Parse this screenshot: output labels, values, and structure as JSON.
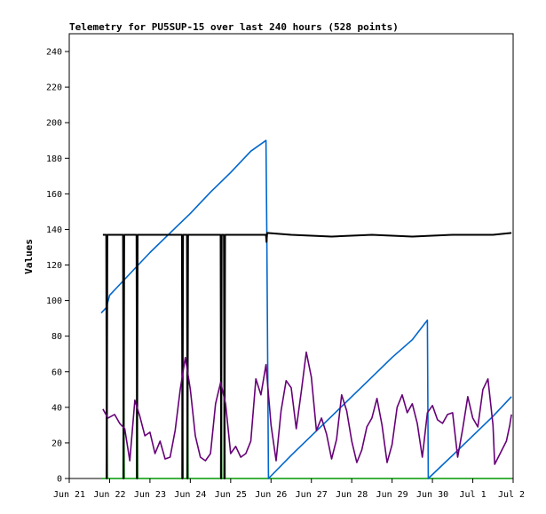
{
  "chart_data": {
    "type": "line",
    "title": "Telemetry for PU5SUP-15 over last 240 hours (528 points)",
    "ylabel": "Values",
    "xlabel": "",
    "ylim": [
      0,
      250
    ],
    "xlim": [
      "2023-06-21",
      "2023-07-02"
    ],
    "y_ticks": [
      0,
      20,
      40,
      60,
      80,
      100,
      120,
      140,
      160,
      180,
      200,
      220,
      240
    ],
    "x_ticks": [
      {
        "x": "2023-06-21",
        "label": "Jun 21"
      },
      {
        "x": "2023-06-22",
        "label": "Jun 22"
      },
      {
        "x": "2023-06-23",
        "label": "Jun 23"
      },
      {
        "x": "2023-06-24",
        "label": "Jun 24"
      },
      {
        "x": "2023-06-25",
        "label": "Jun 25"
      },
      {
        "x": "2023-06-26",
        "label": "Jun 26"
      },
      {
        "x": "2023-06-27",
        "label": "Jun 27"
      },
      {
        "x": "2023-06-28",
        "label": "Jun 28"
      },
      {
        "x": "2023-06-29",
        "label": "Jun 29"
      },
      {
        "x": "2023-06-30",
        "label": "Jun 30"
      },
      {
        "x": "2023-07-01",
        "label": "Jul 1"
      },
      {
        "x": "2023-07-02",
        "label": "Jul 2"
      }
    ],
    "grid": false,
    "series": [
      {
        "color": "#0066cc",
        "points": [
          [
            "2023-06-21 19:00",
            93
          ],
          [
            "2023-06-21 22:00",
            96
          ],
          [
            "2023-06-22 00:00",
            103
          ],
          [
            "2023-06-22 12:00",
            115
          ],
          [
            "2023-06-23 00:00",
            127
          ],
          [
            "2023-06-23 12:00",
            138
          ],
          [
            "2023-06-24 00:00",
            149
          ],
          [
            "2023-06-24 12:00",
            161
          ],
          [
            "2023-06-25 00:00",
            172
          ],
          [
            "2023-06-25 12:00",
            184
          ],
          [
            "2023-06-25 21:00",
            190
          ],
          [
            "2023-06-25 21:30",
            140
          ],
          [
            "2023-06-25 22:30",
            0
          ],
          [
            "2023-06-26 12:00",
            13
          ],
          [
            "2023-06-27 00:00",
            24
          ],
          [
            "2023-06-27 12:00",
            35
          ],
          [
            "2023-06-28 00:00",
            46
          ],
          [
            "2023-06-28 12:00",
            57
          ],
          [
            "2023-06-29 00:00",
            68
          ],
          [
            "2023-06-29 12:00",
            78
          ],
          [
            "2023-06-29 21:00",
            89
          ],
          [
            "2023-06-29 21:30",
            0
          ],
          [
            "2023-06-30 12:00",
            13
          ],
          [
            "2023-07-01 00:00",
            24
          ],
          [
            "2023-07-01 12:00",
            35
          ],
          [
            "2023-07-01 23:00",
            46
          ]
        ]
      },
      {
        "color": "#000000",
        "points": [
          [
            "2023-06-21 20:00",
            137
          ],
          [
            "2023-06-21 22:00",
            137
          ],
          [
            "2023-06-21 22:20",
            0
          ],
          [
            "2023-06-21 22:40",
            137
          ],
          [
            "2023-06-22 08:00",
            137
          ],
          [
            "2023-06-22 08:20",
            0
          ],
          [
            "2023-06-22 08:40",
            137
          ],
          [
            "2023-06-22 16:00",
            137
          ],
          [
            "2023-06-22 16:20",
            0
          ],
          [
            "2023-06-22 16:40",
            137
          ],
          [
            "2023-06-23 19:00",
            137
          ],
          [
            "2023-06-23 19:20",
            0
          ],
          [
            "2023-06-23 19:40",
            137
          ],
          [
            "2023-06-23 22:00",
            137
          ],
          [
            "2023-06-23 22:20",
            0
          ],
          [
            "2023-06-23 22:40",
            137
          ],
          [
            "2023-06-24 18:00",
            137
          ],
          [
            "2023-06-24 18:20",
            0
          ],
          [
            "2023-06-24 18:40",
            137
          ],
          [
            "2023-06-24 20:00",
            137
          ],
          [
            "2023-06-24 20:20",
            0
          ],
          [
            "2023-06-24 20:40",
            137
          ],
          [
            "2023-06-25 21:00",
            137
          ],
          [
            "2023-06-25 21:20",
            133
          ],
          [
            "2023-06-25 21:40",
            138
          ],
          [
            "2023-06-26 12:00",
            137
          ],
          [
            "2023-06-27 12:00",
            136
          ],
          [
            "2023-06-28 12:00",
            137
          ],
          [
            "2023-06-29 12:00",
            136
          ],
          [
            "2023-06-30 12:00",
            137
          ],
          [
            "2023-07-01 12:00",
            137
          ],
          [
            "2023-07-01 23:00",
            138
          ]
        ]
      },
      {
        "color": "#660077",
        "points": [
          [
            "2023-06-21 20:00",
            39
          ],
          [
            "2023-06-21 23:00",
            34
          ],
          [
            "2023-06-22 03:00",
            36
          ],
          [
            "2023-06-22 06:00",
            31
          ],
          [
            "2023-06-22 09:00",
            28
          ],
          [
            "2023-06-22 12:00",
            10
          ],
          [
            "2023-06-22 15:00",
            44
          ],
          [
            "2023-06-22 18:00",
            35
          ],
          [
            "2023-06-22 21:00",
            24
          ],
          [
            "2023-06-23 00:00",
            26
          ],
          [
            "2023-06-23 03:00",
            14
          ],
          [
            "2023-06-23 06:00",
            21
          ],
          [
            "2023-06-23 09:00",
            11
          ],
          [
            "2023-06-23 12:00",
            12
          ],
          [
            "2023-06-23 15:00",
            27
          ],
          [
            "2023-06-23 18:00",
            50
          ],
          [
            "2023-06-23 21:00",
            68
          ],
          [
            "2023-06-24 00:00",
            50
          ],
          [
            "2023-06-24 03:00",
            24
          ],
          [
            "2023-06-24 06:00",
            12
          ],
          [
            "2023-06-24 09:00",
            10
          ],
          [
            "2023-06-24 12:00",
            14
          ],
          [
            "2023-06-24 15:00",
            42
          ],
          [
            "2023-06-24 18:00",
            54
          ],
          [
            "2023-06-24 21:00",
            42
          ],
          [
            "2023-06-25 00:00",
            14
          ],
          [
            "2023-06-25 03:00",
            18
          ],
          [
            "2023-06-25 06:00",
            12
          ],
          [
            "2023-06-25 09:00",
            14
          ],
          [
            "2023-06-25 12:00",
            21
          ],
          [
            "2023-06-25 15:00",
            56
          ],
          [
            "2023-06-25 18:00",
            47
          ],
          [
            "2023-06-25 21:00",
            64
          ],
          [
            "2023-06-26 00:00",
            30
          ],
          [
            "2023-06-26 03:00",
            10
          ],
          [
            "2023-06-26 06:00",
            38
          ],
          [
            "2023-06-26 09:00",
            55
          ],
          [
            "2023-06-26 12:00",
            51
          ],
          [
            "2023-06-26 15:00",
            28
          ],
          [
            "2023-06-26 18:00",
            49
          ],
          [
            "2023-06-26 21:00",
            71
          ],
          [
            "2023-06-27 00:00",
            57
          ],
          [
            "2023-06-27 03:00",
            27
          ],
          [
            "2023-06-27 06:00",
            34
          ],
          [
            "2023-06-27 09:00",
            25
          ],
          [
            "2023-06-27 12:00",
            11
          ],
          [
            "2023-06-27 15:00",
            22
          ],
          [
            "2023-06-27 18:00",
            47
          ],
          [
            "2023-06-27 21:00",
            38
          ],
          [
            "2023-06-28 00:00",
            21
          ],
          [
            "2023-06-28 03:00",
            9
          ],
          [
            "2023-06-28 06:00",
            16
          ],
          [
            "2023-06-28 09:00",
            29
          ],
          [
            "2023-06-28 12:00",
            34
          ],
          [
            "2023-06-28 15:00",
            45
          ],
          [
            "2023-06-28 18:00",
            30
          ],
          [
            "2023-06-28 21:00",
            9
          ],
          [
            "2023-06-29 00:00",
            19
          ],
          [
            "2023-06-29 03:00",
            40
          ],
          [
            "2023-06-29 06:00",
            47
          ],
          [
            "2023-06-29 09:00",
            37
          ],
          [
            "2023-06-29 12:00",
            42
          ],
          [
            "2023-06-29 15:00",
            31
          ],
          [
            "2023-06-29 18:00",
            12
          ],
          [
            "2023-06-29 21:00",
            37
          ],
          [
            "2023-06-30 00:00",
            41
          ],
          [
            "2023-06-30 03:00",
            33
          ],
          [
            "2023-06-30 06:00",
            31
          ],
          [
            "2023-06-30 09:00",
            36
          ],
          [
            "2023-06-30 12:00",
            37
          ],
          [
            "2023-06-30 15:00",
            12
          ],
          [
            "2023-06-30 18:00",
            28
          ],
          [
            "2023-06-30 21:00",
            46
          ],
          [
            "2023-07-01 00:00",
            34
          ],
          [
            "2023-07-01 03:00",
            29
          ],
          [
            "2023-07-01 06:00",
            50
          ],
          [
            "2023-07-01 09:00",
            56
          ],
          [
            "2023-07-01 12:00",
            30
          ],
          [
            "2023-07-01 13:00",
            8
          ],
          [
            "2023-07-01 20:00",
            21
          ],
          [
            "2023-07-01 22:00",
            30
          ],
          [
            "2023-07-01 23:00",
            36
          ]
        ]
      },
      {
        "color": "#009900",
        "points": [
          [
            "2023-06-21 19:00",
            0
          ],
          [
            "2023-06-21 22:00",
            0
          ],
          [
            "2023-06-21 22:20",
            70
          ],
          [
            "2023-06-21 22:40",
            0
          ],
          [
            "2023-06-22 08:00",
            0
          ],
          [
            "2023-06-22 08:20",
            70
          ],
          [
            "2023-06-22 08:40",
            0
          ],
          [
            "2023-06-22 16:00",
            0
          ],
          [
            "2023-06-22 16:20",
            70
          ],
          [
            "2023-06-22 16:40",
            0
          ],
          [
            "2023-06-23 19:00",
            0
          ],
          [
            "2023-06-23 19:20",
            70
          ],
          [
            "2023-06-23 19:40",
            0
          ],
          [
            "2023-06-23 22:00",
            0
          ],
          [
            "2023-06-23 22:20",
            70
          ],
          [
            "2023-06-23 22:40",
            0
          ],
          [
            "2023-06-24 18:00",
            0
          ],
          [
            "2023-06-24 18:20",
            70
          ],
          [
            "2023-06-24 18:40",
            0
          ],
          [
            "2023-06-24 20:00",
            0
          ],
          [
            "2023-06-24 20:20",
            70
          ],
          [
            "2023-06-24 20:40",
            0
          ],
          [
            "2023-07-01 23:00",
            0
          ]
        ]
      }
    ]
  }
}
